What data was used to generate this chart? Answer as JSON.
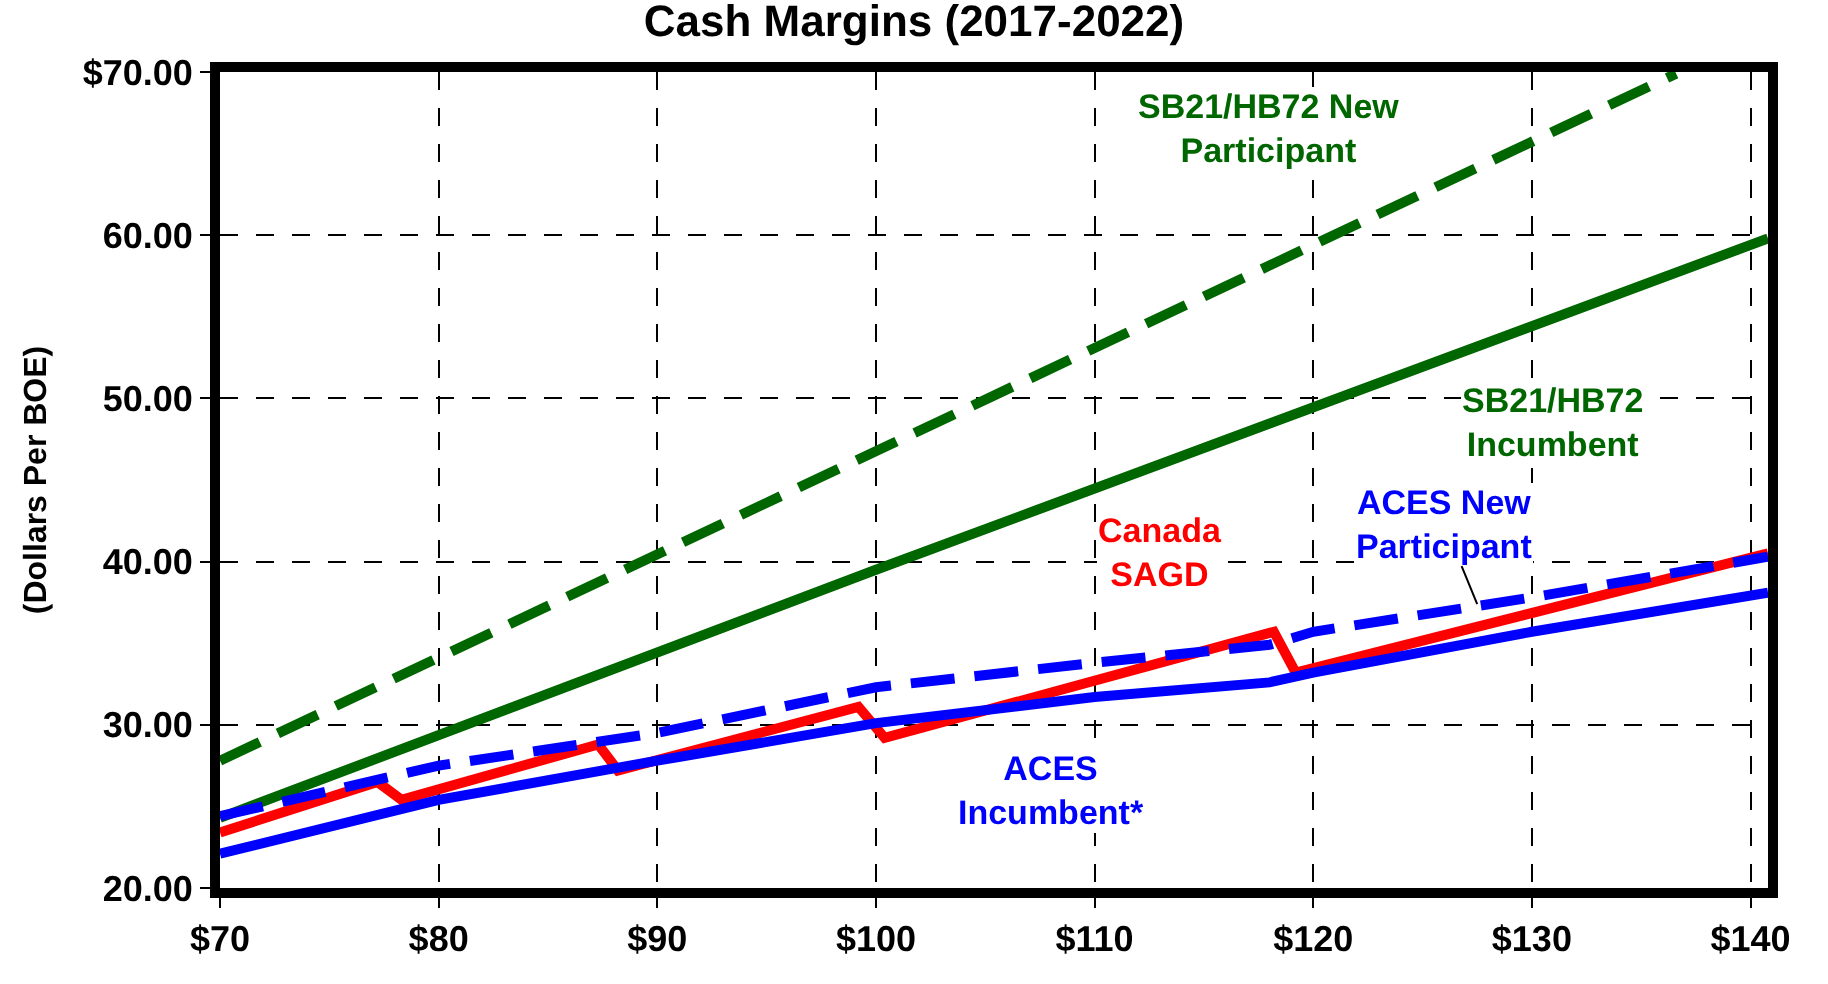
{
  "chart_data": {
    "type": "line",
    "title": "Cash Margins (2017-2022)",
    "ylabel": "(Dollars Per BOE)",
    "xlim": [
      70,
      140.8
    ],
    "xticks": [
      {
        "value": 70,
        "label": "$70"
      },
      {
        "value": 80,
        "label": "$80"
      },
      {
        "value": 90,
        "label": "$90"
      },
      {
        "value": 100,
        "label": "$100"
      },
      {
        "value": 110,
        "label": "$110"
      },
      {
        "value": 120,
        "label": "$120"
      },
      {
        "value": 130,
        "label": "$130"
      },
      {
        "value": 140,
        "label": "$140"
      }
    ],
    "ylim": [
      20,
      70
    ],
    "yticks": [
      {
        "value": 20,
        "label": "20.00"
      },
      {
        "value": 30,
        "label": "30.00"
      },
      {
        "value": 40,
        "label": "40.00"
      },
      {
        "value": 50,
        "label": "50.00"
      },
      {
        "value": 60,
        "label": "60.00"
      },
      {
        "value": 70,
        "label": "$70.00"
      }
    ],
    "grid": true,
    "legend": false,
    "marker": "none",
    "series": [
      {
        "name": "SB21/HB72 New Participant",
        "color": "#006600",
        "line_style": "dashed",
        "x": [
          70,
          136.6
        ],
        "values": [
          27.8,
          69.9
        ]
      },
      {
        "name": "SB21/HB72 Incumbent",
        "color": "#006600",
        "line_style": "solid",
        "x": [
          70,
          100,
          140.8
        ],
        "values": [
          24.3,
          39.5,
          59.8
        ]
      },
      {
        "name": "Canada SAGD",
        "color": "#ff0000",
        "line_style": "solid",
        "x": [
          70,
          77.2,
          78.3,
          87.3,
          88.2,
          99.2,
          100.4,
          118.2,
          119.2,
          140.8
        ],
        "values": [
          23.4,
          26.5,
          25.4,
          28.8,
          27.2,
          31.1,
          29.2,
          35.7,
          33.2,
          40.5
        ]
      },
      {
        "name": "ACES New Participant",
        "color": "#0000ff",
        "line_style": "dashed",
        "x": [
          70,
          80,
          90,
          100,
          110,
          118,
          120,
          130,
          140.8
        ],
        "values": [
          24.4,
          27.5,
          29.5,
          32.3,
          33.8,
          34.9,
          35.7,
          37.8,
          40.3
        ]
      },
      {
        "name": "ACES Incumbent*",
        "color": "#0000ff",
        "line_style": "solid",
        "x": [
          70,
          80,
          90,
          100,
          110,
          118,
          120,
          130,
          140.8
        ],
        "values": [
          22.1,
          25.4,
          27.8,
          30.1,
          31.7,
          32.6,
          33.2,
          35.7,
          38.1
        ]
      }
    ]
  }
}
